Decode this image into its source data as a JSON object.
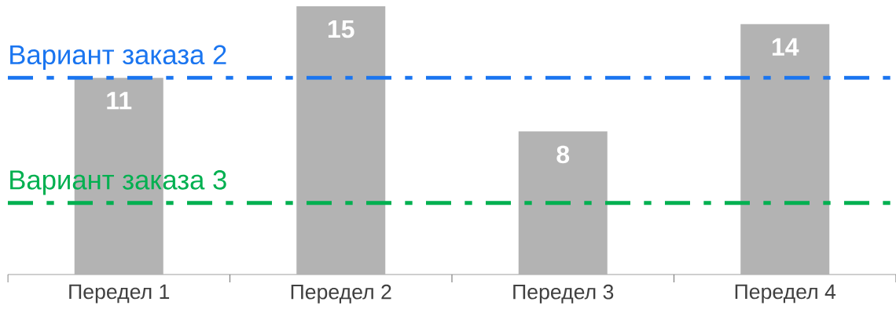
{
  "chart_data": {
    "type": "bar",
    "categories": [
      "Передел 1",
      "Передел 2",
      "Передел 3",
      "Передел 4"
    ],
    "values": [
      11,
      15,
      8,
      14
    ],
    "color": "#b3b3b3",
    "data_labels": true,
    "ylim": [
      0,
      15
    ],
    "ref_lines": [
      {
        "axis": "y",
        "value": 11,
        "label": "Вариант заказа 2",
        "color": "#1a75f0",
        "line_style": "dashdot"
      },
      {
        "axis": "y",
        "value": 4,
        "label": "Вариант заказа 3",
        "color": "#00b050",
        "line_style": "dashdot"
      }
    ]
  }
}
